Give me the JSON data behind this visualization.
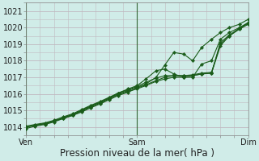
{
  "xlabel": "Pression niveau de la mer( hPa )",
  "bg_color": "#d0ece8",
  "grid_color": "#c0b8c0",
  "line_color": "#1a5c1a",
  "marker_color": "#1a5c1a",
  "xlim": [
    0,
    2
  ],
  "ylim": [
    1013.5,
    1021.5
  ],
  "yticks": [
    1014,
    1015,
    1016,
    1017,
    1018,
    1019,
    1020,
    1021
  ],
  "xtick_labels": [
    "Ven",
    "Sam",
    "Dim"
  ],
  "xtick_positions": [
    0,
    1,
    2
  ],
  "series": [
    {
      "x": [
        0.0,
        0.08,
        0.17,
        0.25,
        0.33,
        0.42,
        0.5,
        0.58,
        0.67,
        0.75,
        0.83,
        0.92,
        1.0,
        1.08,
        1.17,
        1.25,
        1.33,
        1.42,
        1.5,
        1.58,
        1.67,
        1.75,
        1.83,
        1.92,
        2.0
      ],
      "y": [
        1014.0,
        1014.1,
        1014.2,
        1014.35,
        1014.55,
        1014.75,
        1015.0,
        1015.25,
        1015.5,
        1015.75,
        1016.0,
        1016.2,
        1016.4,
        1016.6,
        1017.0,
        1017.75,
        1018.5,
        1018.4,
        1018.0,
        1018.8,
        1019.3,
        1019.7,
        1020.0,
        1020.2,
        1020.5
      ]
    },
    {
      "x": [
        0.0,
        0.08,
        0.17,
        0.25,
        0.33,
        0.42,
        0.5,
        0.58,
        0.67,
        0.75,
        0.83,
        0.92,
        1.0,
        1.08,
        1.17,
        1.25,
        1.33,
        1.42,
        1.5,
        1.58,
        1.67,
        1.75,
        1.83,
        1.92,
        2.0
      ],
      "y": [
        1014.0,
        1014.1,
        1014.2,
        1014.35,
        1014.55,
        1014.75,
        1015.0,
        1015.25,
        1015.5,
        1015.75,
        1016.05,
        1016.3,
        1016.5,
        1016.9,
        1017.4,
        1017.5,
        1017.2,
        1017.0,
        1017.0,
        1017.8,
        1018.0,
        1019.3,
        1019.7,
        1020.0,
        1020.3
      ]
    },
    {
      "x": [
        0.0,
        0.08,
        0.17,
        0.25,
        0.33,
        0.42,
        0.5,
        0.58,
        0.67,
        0.75,
        0.83,
        0.92,
        1.0,
        1.08,
        1.17,
        1.25,
        1.33,
        1.42,
        1.5,
        1.58,
        1.67,
        1.75,
        1.83,
        1.92,
        2.0
      ],
      "y": [
        1013.9,
        1014.05,
        1014.15,
        1014.3,
        1014.5,
        1014.7,
        1014.95,
        1015.2,
        1015.45,
        1015.7,
        1015.95,
        1016.15,
        1016.3,
        1016.5,
        1016.75,
        1016.9,
        1017.0,
        1017.0,
        1017.1,
        1017.2,
        1017.25,
        1018.9,
        1019.5,
        1019.9,
        1020.2
      ]
    },
    {
      "x": [
        0.0,
        0.08,
        0.17,
        0.25,
        0.33,
        0.42,
        0.5,
        0.58,
        0.67,
        0.75,
        0.83,
        0.92,
        1.0,
        1.08,
        1.17,
        1.25,
        1.33,
        1.42,
        1.5,
        1.58,
        1.67,
        1.75,
        1.83,
        1.92,
        2.0
      ],
      "y": [
        1014.0,
        1014.1,
        1014.2,
        1014.35,
        1014.5,
        1014.7,
        1014.9,
        1015.15,
        1015.4,
        1015.65,
        1015.9,
        1016.1,
        1016.35,
        1016.55,
        1016.8,
        1017.0,
        1017.1,
        1017.1,
        1017.1,
        1017.2,
        1017.25,
        1019.1,
        1019.55,
        1019.95,
        1020.25
      ]
    },
    {
      "x": [
        0.0,
        0.08,
        0.17,
        0.25,
        0.33,
        0.42,
        0.5,
        0.58,
        0.67,
        0.75,
        0.83,
        0.92,
        1.0,
        1.08,
        1.17,
        1.25,
        1.33,
        1.42,
        1.5,
        1.58,
        1.67,
        1.75,
        1.83,
        1.92,
        2.0
      ],
      "y": [
        1014.05,
        1014.15,
        1014.25,
        1014.4,
        1014.6,
        1014.8,
        1015.05,
        1015.3,
        1015.55,
        1015.8,
        1016.05,
        1016.25,
        1016.45,
        1016.7,
        1016.95,
        1017.1,
        1017.1,
        1017.1,
        1017.15,
        1017.25,
        1017.3,
        1019.0,
        1019.5,
        1019.95,
        1020.3
      ]
    }
  ],
  "vlines": [
    0.0,
    1.0,
    2.0
  ],
  "vline_color": "#336633",
  "xlabel_fontsize": 8.5,
  "tick_fontsize": 7
}
